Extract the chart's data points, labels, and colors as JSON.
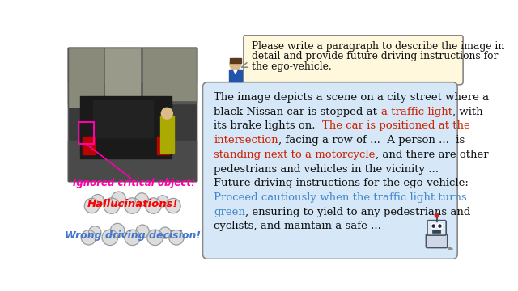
{
  "bg_color": "#ffffff",
  "ignored_label": "Ignored critical object!",
  "ignored_color": "#FF00AA",
  "cloud1_label": "Hallucinations!",
  "cloud1_color": "#FF0000",
  "cloud2_label": "Wrong driving decision!",
  "cloud2_color": "#4477CC",
  "bubble_query_bg": "#FFF8DC",
  "bubble_query_border": "#888888",
  "query_line1": "Please write a paragraph to describe the image in",
  "query_line2": "detail and provide future driving instructions for",
  "query_line3": "the ego-vehicle.",
  "bubble_response_bg": "#D6E8F7",
  "bubble_response_border": "#888888",
  "red_color": "#CC2200",
  "blue_color": "#4488CC",
  "black_color": "#111111",
  "font_size_main": 9.5,
  "font_size_query": 8.8,
  "response_lines": [
    [
      [
        "The image depicts a scene on a city street where a",
        "black",
        false
      ]
    ],
    [
      [
        "black Nissan car is stopped at ",
        "black",
        false
      ],
      [
        "a traffic light",
        "red",
        false
      ],
      [
        ", with",
        "black",
        false
      ]
    ],
    [
      [
        "its brake lights on.  ",
        "black",
        false
      ],
      [
        "The car is positioned at the",
        "red",
        false
      ]
    ],
    [
      [
        "intersection",
        "red",
        false
      ],
      [
        ", facing a row of ...  A person ...  is",
        "black",
        false
      ]
    ],
    [
      [
        "standing next to a motorcycle",
        "red",
        false
      ],
      [
        ", and there are other",
        "black",
        false
      ]
    ],
    [
      [
        "pedestrians and vehicles in the vicinity ...",
        "black",
        false
      ]
    ],
    [
      [
        "Future driving instructions for the ego-vehicle:",
        "black",
        false
      ]
    ],
    [
      [
        "Proceed cautiously when the traffic light turns",
        "blue",
        false
      ]
    ],
    [
      [
        "green",
        "blue",
        false
      ],
      [
        ", ensuring to yield to any pedestrians and",
        "black",
        false
      ]
    ],
    [
      [
        "cyclists, and maintain a safe ...",
        "black",
        false
      ]
    ]
  ]
}
